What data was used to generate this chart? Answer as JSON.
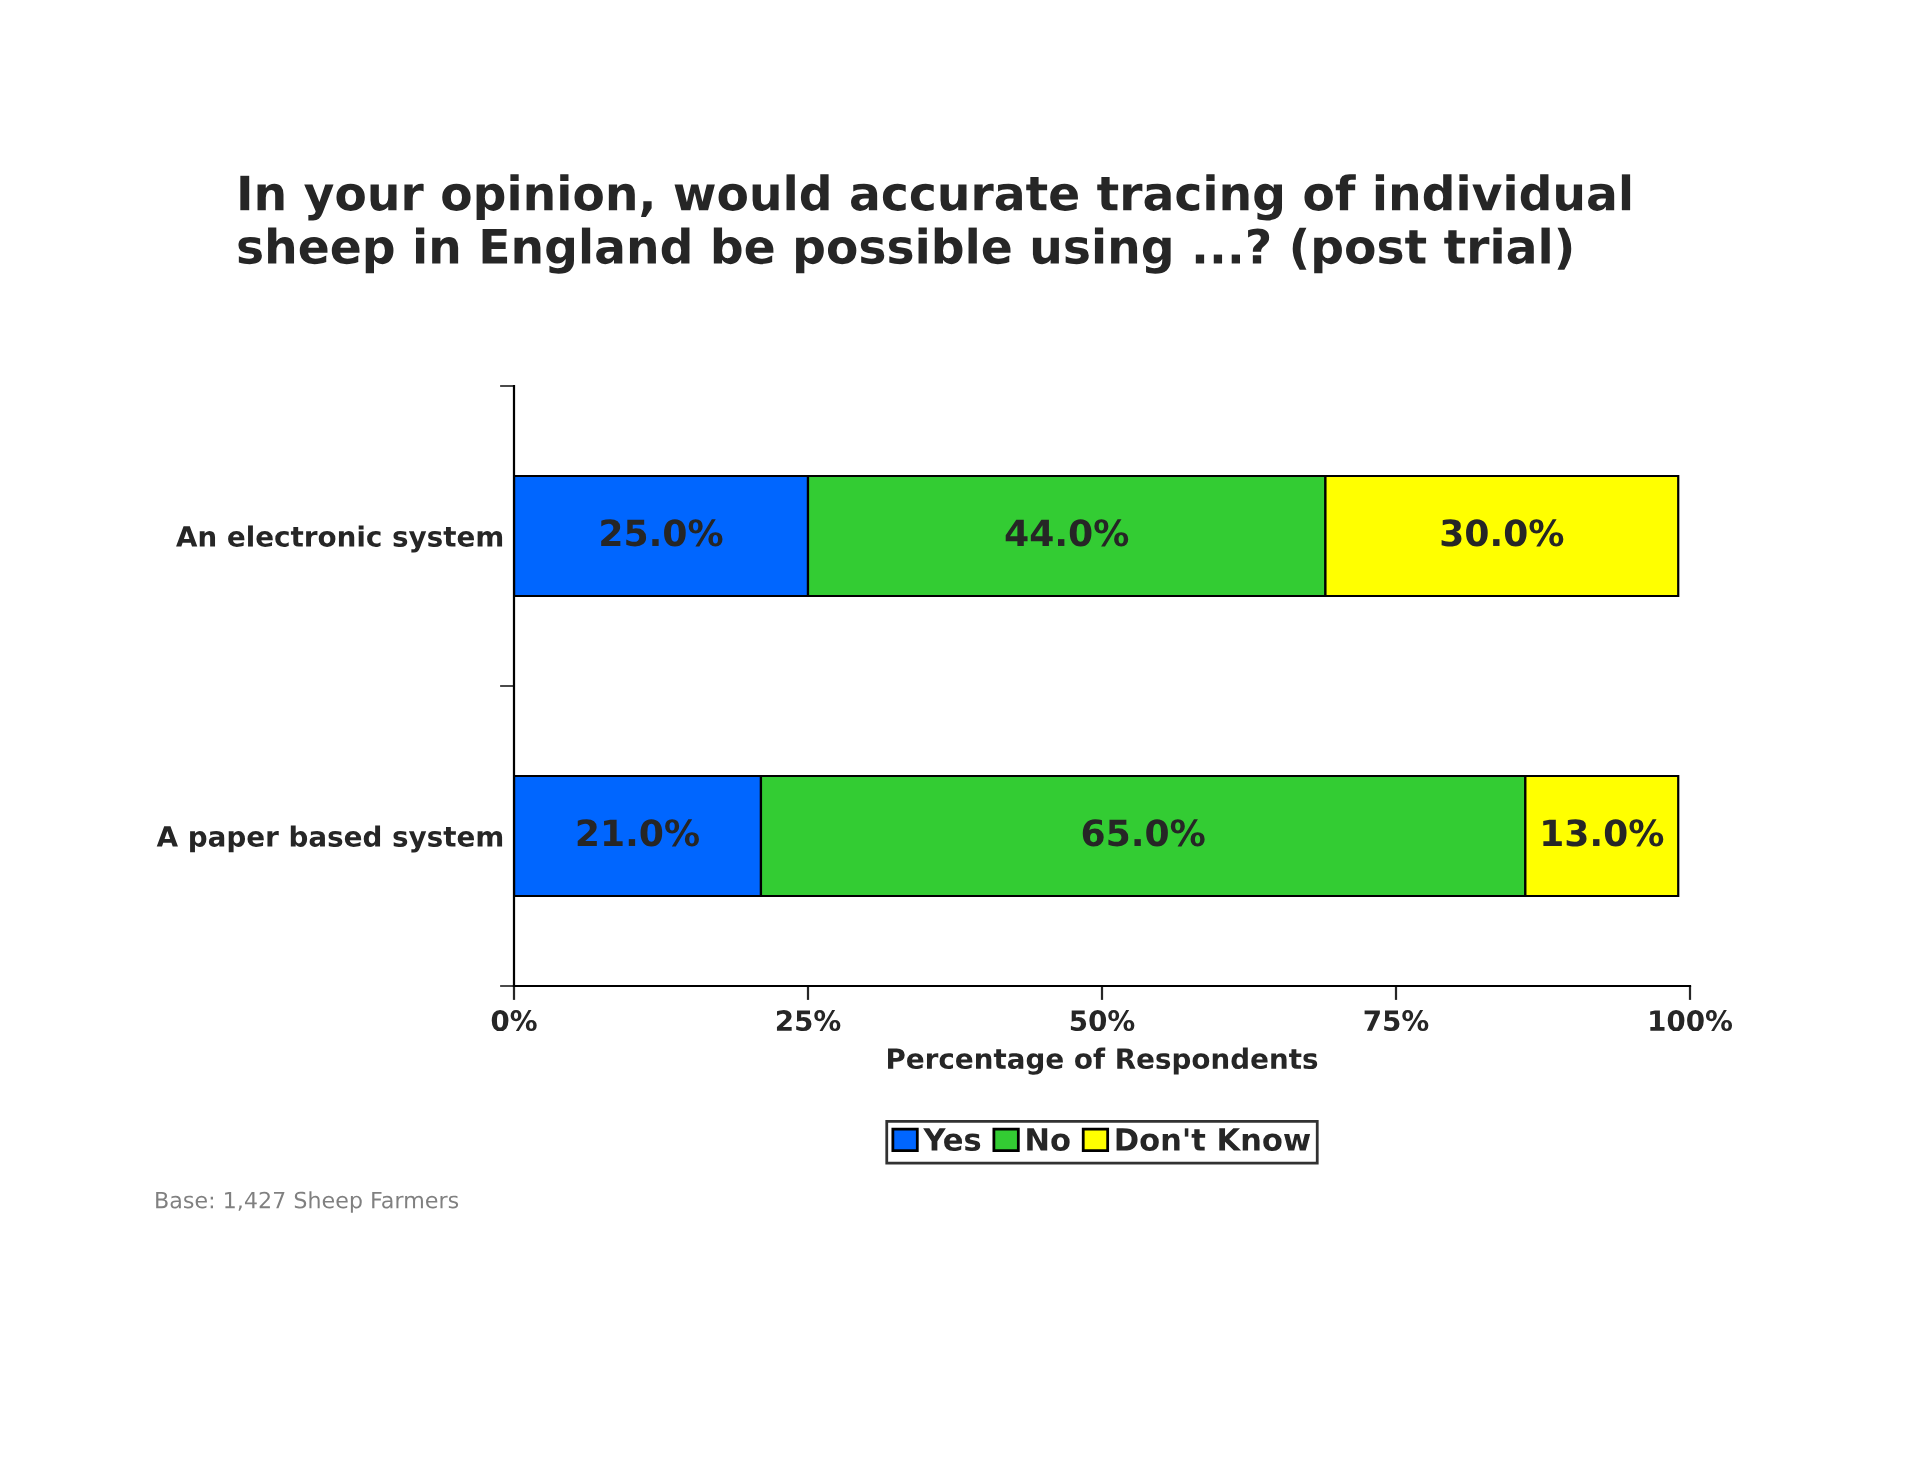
{
  "chart_data": {
    "type": "bar",
    "orientation": "horizontal",
    "stacked": true,
    "title": "In your opinion, would accurate tracing of individual\nsheep in England be possible using ...? (post trial)",
    "xlabel": "Percentage of Respondents",
    "categories": [
      "An electronic system",
      "A paper based system"
    ],
    "series": [
      {
        "name": "Yes",
        "color": "#0066ff",
        "values": [
          25.0,
          21.0
        ],
        "value_labels": [
          "25.0%",
          "21.0%"
        ]
      },
      {
        "name": "No",
        "color": "#33cc33",
        "values": [
          44.0,
          65.0
        ],
        "value_labels": [
          "44.0%",
          "65.0%"
        ]
      },
      {
        "name": "Don't Know",
        "color": "#ffff00",
        "values": [
          30.0,
          13.0
        ],
        "value_labels": [
          "30.0%",
          "13.0%"
        ]
      }
    ],
    "xlim": [
      0,
      100
    ],
    "xticks": [
      {
        "value": 0,
        "label": "0%"
      },
      {
        "value": 25,
        "label": "25%"
      },
      {
        "value": 50,
        "label": "50%"
      },
      {
        "value": 75,
        "label": "75%"
      },
      {
        "value": 100,
        "label": "100%"
      }
    ],
    "grid": false,
    "legend": "bottom",
    "annotations": [
      "Base: 1,427 Sheep Farmers"
    ]
  }
}
